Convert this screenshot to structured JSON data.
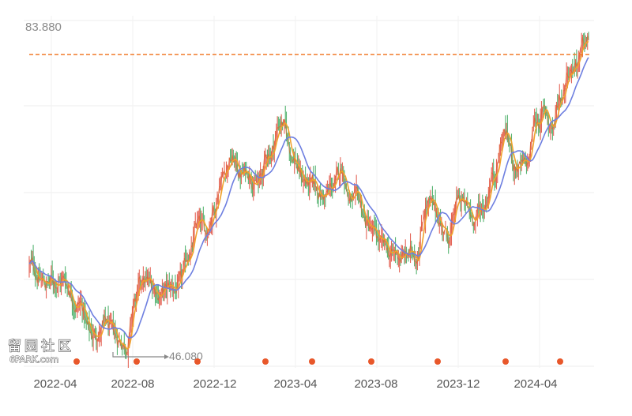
{
  "chart_data": {
    "type": "line",
    "y_top_label": "83.880",
    "min_label": "46.080",
    "x_ticks": [
      "2022-04",
      "2022-08",
      "2022-12",
      "2023-04",
      "2023-08",
      "2023-12",
      "2024-04"
    ],
    "ylim": [
      46.08,
      83.88
    ],
    "reference_line": {
      "value": 80.7,
      "color": "#f07a2a",
      "style": "dashed"
    },
    "grid": true,
    "colors": {
      "price": "#e0642a",
      "ma_short": "#f0a12a",
      "ma_long": "#6e7fe0",
      "up": "#e04a3a",
      "down": "#3aa85a",
      "event_marker": "#e8572a"
    },
    "price_anchors": {
      "t": [
        0,
        0.03,
        0.06,
        0.09,
        0.11,
        0.135,
        0.155,
        0.175,
        0.19,
        0.205,
        0.22,
        0.24,
        0.27,
        0.29,
        0.3,
        0.315,
        0.33,
        0.345,
        0.36,
        0.38,
        0.395,
        0.41,
        0.43,
        0.45,
        0.47,
        0.49,
        0.51,
        0.53,
        0.545,
        0.56,
        0.575,
        0.59,
        0.605,
        0.62,
        0.635,
        0.65,
        0.67,
        0.69,
        0.71,
        0.73,
        0.75,
        0.77,
        0.79,
        0.81,
        0.83,
        0.85,
        0.87,
        0.89,
        0.905,
        0.92,
        0.935,
        0.95,
        0.965,
        0.98,
        1.0
      ],
      "v": [
        56.5,
        54.5,
        55.0,
        52.5,
        48.5,
        49.5,
        47.8,
        48.0,
        52.5,
        54.5,
        54.0,
        53.5,
        54.0,
        58.5,
        61.0,
        60.0,
        63.5,
        67.5,
        69.0,
        67.0,
        67.5,
        66.0,
        69.5,
        73.2,
        69.5,
        66.5,
        65.0,
        64.5,
        65.5,
        67.5,
        64.0,
        63.0,
        61.0,
        59.5,
        58.0,
        57.5,
        57.5,
        57.8,
        64.0,
        62.0,
        60.0,
        64.0,
        62.0,
        63.0,
        67.5,
        72.0,
        68.0,
        67.5,
        73.0,
        74.0,
        72.5,
        76.0,
        79.5,
        80.5,
        82.0
      ]
    },
    "event_marker_count": 9
  },
  "watermark": {
    "line1": "留园社区",
    "line2": "6PARK.com"
  }
}
